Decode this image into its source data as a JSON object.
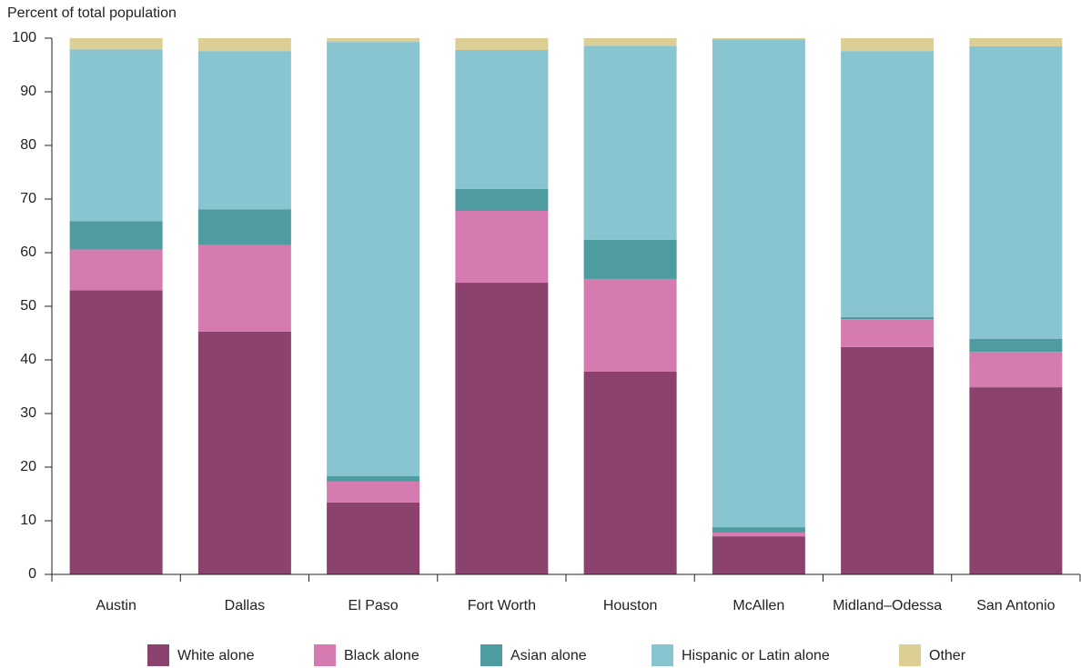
{
  "chart_data": {
    "type": "stacked_bar",
    "y_axis_label": "Percent of total population",
    "categories": [
      "Austin",
      "Dallas",
      "El Paso",
      "Fort Worth",
      "Houston",
      "McAllen",
      "Midland–Odessa",
      "San Antonio"
    ],
    "series": [
      {
        "name": "White alone",
        "color": "#8b426d",
        "values": [
          53.0,
          45.3,
          13.4,
          54.4,
          37.8,
          7.1,
          42.4,
          34.9
        ]
      },
      {
        "name": "Black alone",
        "color": "#d57bb0",
        "values": [
          7.6,
          16.1,
          3.9,
          13.4,
          17.3,
          0.7,
          5.2,
          6.6
        ]
      },
      {
        "name": "Asian alone",
        "color": "#4e9ba0",
        "values": [
          5.3,
          6.7,
          1.0,
          4.1,
          7.3,
          1.0,
          0.4,
          2.4
        ]
      },
      {
        "name": "Hispanic or Latin alone",
        "color": "#89c4d1",
        "values": [
          32.0,
          29.5,
          81.0,
          25.9,
          36.2,
          91.0,
          49.6,
          54.6
        ]
      },
      {
        "name": "Other",
        "color": "#dccf95",
        "values": [
          2.1,
          2.4,
          0.7,
          2.2,
          1.4,
          0.2,
          2.4,
          1.5
        ]
      }
    ],
    "ylim": [
      0,
      100
    ],
    "yticks": [
      0,
      10,
      20,
      30,
      40,
      50,
      60,
      70,
      80,
      90,
      100
    ],
    "legend": "bottom"
  }
}
